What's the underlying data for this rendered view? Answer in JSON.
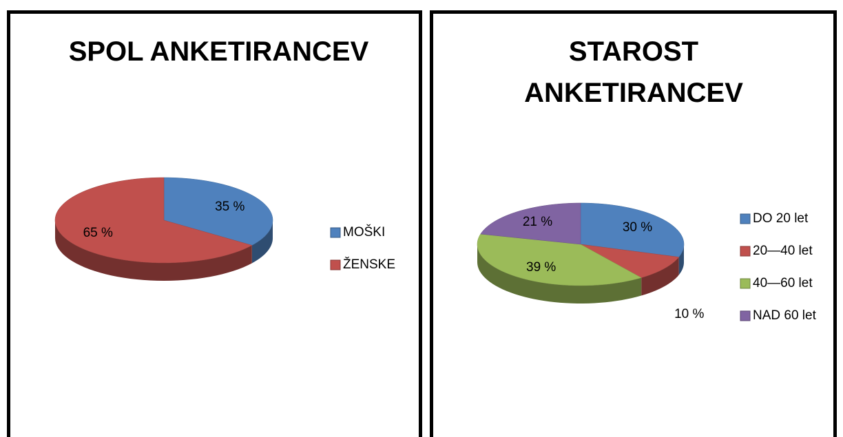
{
  "chart_data": [
    {
      "type": "pie",
      "title": "SPOL ANKETIRANCEV",
      "categories": [
        "MOŠKI",
        "ŽENSKE"
      ],
      "values": [
        35,
        65
      ],
      "value_labels": [
        "35 %",
        "65 %"
      ],
      "colors": [
        "#4f81bd",
        "#c0504d"
      ],
      "legend": "right"
    },
    {
      "type": "pie",
      "title": "STAROST ANKETIRANCEV",
      "categories": [
        "DO 20 let",
        "20—40 let",
        "40—60 let",
        "NAD 60 let"
      ],
      "values": [
        30,
        10,
        39,
        21
      ],
      "value_labels": [
        "30 %",
        "10 %",
        "39 %",
        "21 %"
      ],
      "colors": [
        "#4f81bd",
        "#c0504d",
        "#9bbb59",
        "#8064a2"
      ],
      "legend": "right"
    }
  ]
}
